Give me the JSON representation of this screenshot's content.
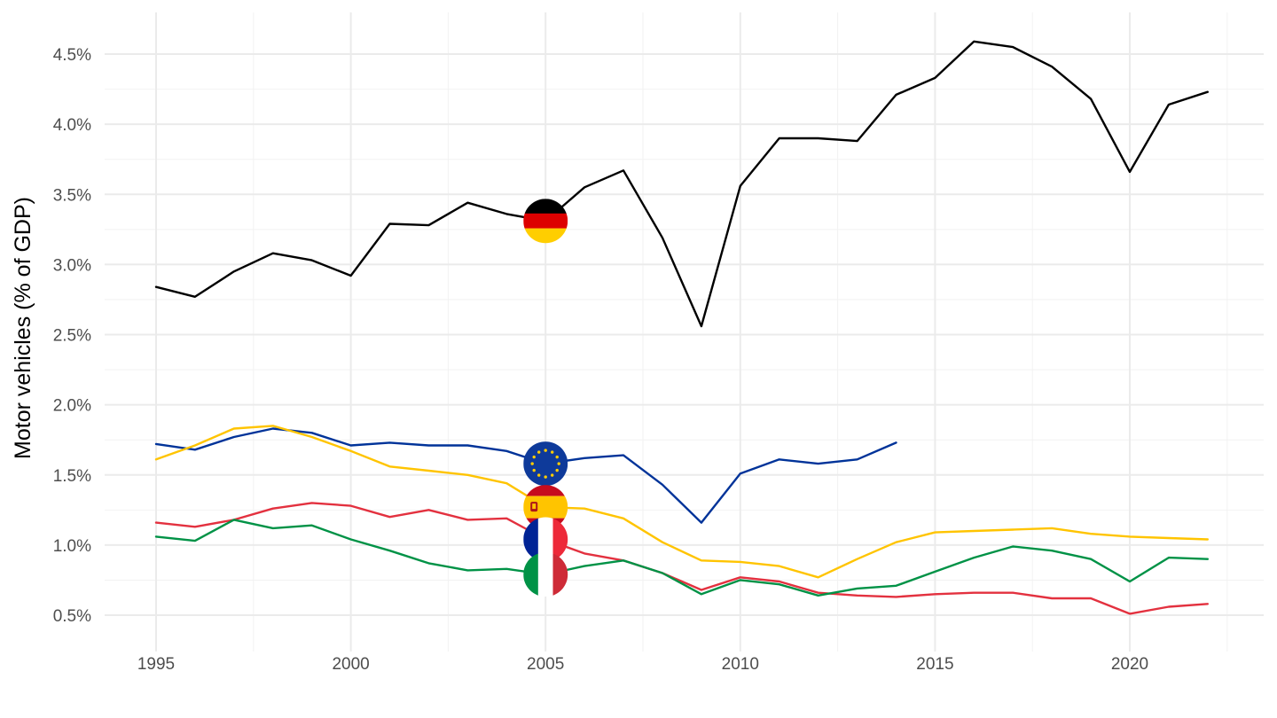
{
  "chart_data": {
    "type": "line",
    "title": "",
    "xlabel": "",
    "ylabel": "Motor vehicles (% of GDP)",
    "xlim": [
      1995,
      2022
    ],
    "ylim": [
      0.5,
      4.5
    ],
    "x_ticks": [
      "1995",
      "2000",
      "2005",
      "2010",
      "2015",
      "2020"
    ],
    "y_ticks": [
      "0.5%",
      "1.0%",
      "1.5%",
      "2.0%",
      "2.5%",
      "3.0%",
      "3.5%",
      "4.0%",
      "4.5%"
    ],
    "grid": true,
    "legend": "flag markers at 2005",
    "flag_year": 2005,
    "series": [
      {
        "key": "germany",
        "flag": "germany-flag",
        "color": "#000000",
        "x": [
          1995,
          1996,
          1997,
          1998,
          1999,
          2000,
          2001,
          2002,
          2003,
          2004,
          2005,
          2006,
          2007,
          2008,
          2009,
          2010,
          2011,
          2012,
          2013,
          2014,
          2015,
          2016,
          2017,
          2018,
          2019,
          2020,
          2021,
          2022
        ],
        "values": [
          2.84,
          2.77,
          2.95,
          3.08,
          3.03,
          2.92,
          3.29,
          3.28,
          3.44,
          3.36,
          3.31,
          3.55,
          3.67,
          3.19,
          2.56,
          3.56,
          3.9,
          3.9,
          3.88,
          4.21,
          4.33,
          4.59,
          4.55,
          4.41,
          4.18,
          3.66,
          4.14,
          4.23
        ]
      },
      {
        "key": "eu",
        "flag": "eu-flag",
        "color": "#003399",
        "x": [
          1995,
          1996,
          1997,
          1998,
          1999,
          2000,
          2001,
          2002,
          2003,
          2004,
          2005,
          2006,
          2007,
          2008,
          2009,
          2010,
          2011,
          2012,
          2013,
          2014
        ],
        "values": [
          1.72,
          1.68,
          1.77,
          1.83,
          1.8,
          1.71,
          1.73,
          1.71,
          1.71,
          1.67,
          1.58,
          1.62,
          1.64,
          1.43,
          1.16,
          1.51,
          1.61,
          1.58,
          1.61,
          1.73
        ]
      },
      {
        "key": "spain",
        "flag": "spain-flag",
        "color": "#ffc400",
        "x": [
          1995,
          1996,
          1997,
          1998,
          1999,
          2000,
          2001,
          2002,
          2003,
          2004,
          2005,
          2006,
          2007,
          2008,
          2009,
          2010,
          2011,
          2012,
          2013,
          2014,
          2015,
          2016,
          2017,
          2018,
          2019,
          2020,
          2021,
          2022
        ],
        "values": [
          1.61,
          1.71,
          1.83,
          1.85,
          1.77,
          1.67,
          1.56,
          1.53,
          1.5,
          1.44,
          1.27,
          1.26,
          1.19,
          1.02,
          0.89,
          0.88,
          0.85,
          0.77,
          0.9,
          1.02,
          1.09,
          1.1,
          1.11,
          1.12,
          1.08,
          1.06,
          1.05,
          1.04
        ]
      },
      {
        "key": "france",
        "flag": "france-flag",
        "color": "#e3313f",
        "x": [
          1995,
          1996,
          1997,
          1998,
          1999,
          2000,
          2001,
          2002,
          2003,
          2004,
          2005,
          2006,
          2007,
          2008,
          2009,
          2010,
          2011,
          2012,
          2013,
          2014,
          2015,
          2016,
          2017,
          2018,
          2019,
          2020,
          2021,
          2022
        ],
        "values": [
          1.16,
          1.13,
          1.18,
          1.26,
          1.3,
          1.28,
          1.2,
          1.25,
          1.18,
          1.19,
          1.04,
          0.94,
          0.89,
          0.8,
          0.68,
          0.77,
          0.74,
          0.66,
          0.64,
          0.63,
          0.65,
          0.66,
          0.66,
          0.62,
          0.62,
          0.51,
          0.56,
          0.58
        ]
      },
      {
        "key": "italy",
        "flag": "italy-flag",
        "color": "#009246",
        "x": [
          1995,
          1996,
          1997,
          1998,
          1999,
          2000,
          2001,
          2002,
          2003,
          2004,
          2005,
          2006,
          2007,
          2008,
          2009,
          2010,
          2011,
          2012,
          2013,
          2014,
          2015,
          2016,
          2017,
          2018,
          2019,
          2020,
          2021,
          2022
        ],
        "values": [
          1.06,
          1.03,
          1.18,
          1.12,
          1.14,
          1.04,
          0.96,
          0.87,
          0.82,
          0.83,
          0.79,
          0.85,
          0.89,
          0.8,
          0.65,
          0.75,
          0.72,
          0.64,
          0.69,
          0.71,
          0.81,
          0.91,
          0.99,
          0.96,
          0.9,
          0.74,
          0.91,
          0.9
        ]
      }
    ]
  }
}
